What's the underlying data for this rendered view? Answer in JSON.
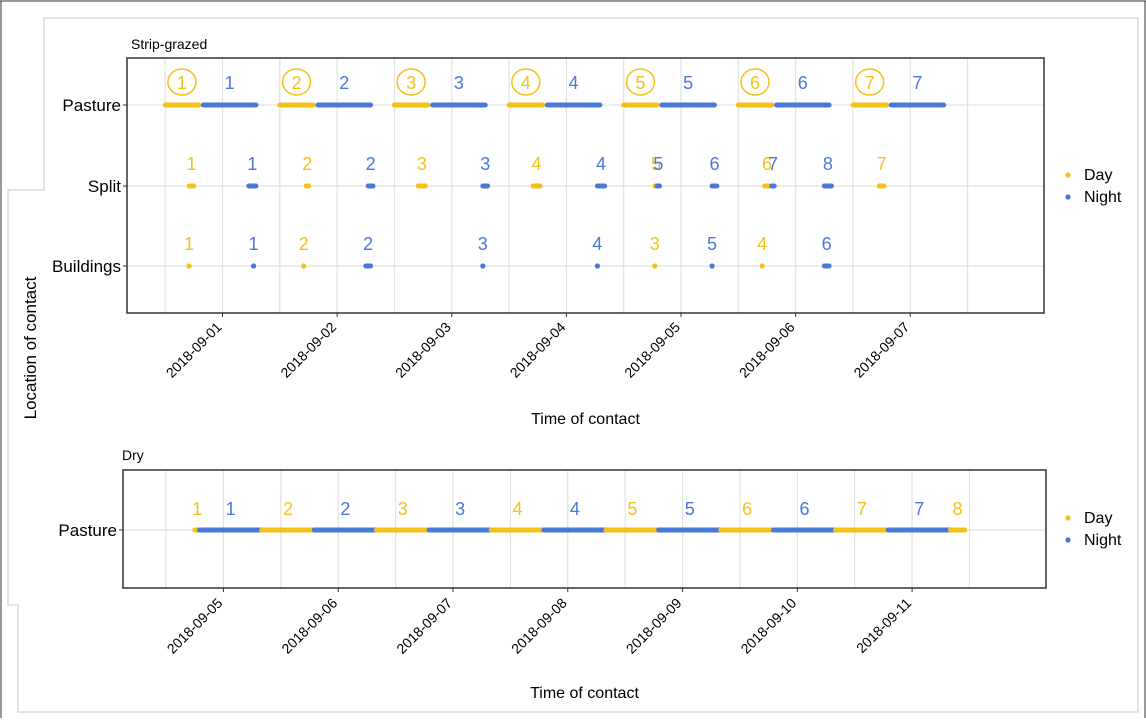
{
  "y_axis_label": "Location of contact",
  "colors": {
    "day": "#F5C116",
    "night": "#4A78D8",
    "panel_border": "#333333",
    "grid": "#E2E2E2"
  },
  "chart_data": [
    {
      "type": "scatter",
      "title": "Strip-grazed",
      "xlabel": "Time of contact",
      "ylabel": "Location of contact",
      "x_ticks": [
        "2018-09-01",
        "2018-09-02",
        "2018-09-03",
        "2018-09-04",
        "2018-09-05",
        "2018-09-06",
        "2018-09-07"
      ],
      "xlim": [
        "2018-08-31 04:00",
        "2018-09-08 04:00"
      ],
      "categories": [
        "Pasture",
        "Split",
        "Buildings"
      ],
      "legend": {
        "placement": "right",
        "entries": [
          "Day",
          "Night"
        ]
      },
      "grid": true,
      "series": [
        {
          "category": "Pasture",
          "segments": [
            {
              "type": "Day",
              "start": "2018-08-31 12:00",
              "end": "2018-08-31 19:00",
              "label": "1",
              "circled": true
            },
            {
              "type": "Night",
              "start": "2018-08-31 20:00",
              "end": "2018-09-01 07:00",
              "label": "1",
              "circled": false
            },
            {
              "type": "Day",
              "start": "2018-09-01 12:00",
              "end": "2018-09-01 19:00",
              "label": "2",
              "circled": true
            },
            {
              "type": "Night",
              "start": "2018-09-01 20:00",
              "end": "2018-09-02 07:00",
              "label": "2",
              "circled": false
            },
            {
              "type": "Day",
              "start": "2018-09-02 12:00",
              "end": "2018-09-02 19:00",
              "label": "3",
              "circled": true
            },
            {
              "type": "Night",
              "start": "2018-09-02 20:00",
              "end": "2018-09-03 07:00",
              "label": "3",
              "circled": false
            },
            {
              "type": "Day",
              "start": "2018-09-03 12:00",
              "end": "2018-09-03 19:00",
              "label": "4",
              "circled": true
            },
            {
              "type": "Night",
              "start": "2018-09-03 20:00",
              "end": "2018-09-04 07:00",
              "label": "4",
              "circled": false
            },
            {
              "type": "Day",
              "start": "2018-09-04 12:00",
              "end": "2018-09-04 19:00",
              "label": "5",
              "circled": true
            },
            {
              "type": "Night",
              "start": "2018-09-04 20:00",
              "end": "2018-09-05 07:00",
              "label": "5",
              "circled": false
            },
            {
              "type": "Day",
              "start": "2018-09-05 12:00",
              "end": "2018-09-05 19:00",
              "label": "6",
              "circled": true
            },
            {
              "type": "Night",
              "start": "2018-09-05 20:00",
              "end": "2018-09-06 07:00",
              "label": "6",
              "circled": false
            },
            {
              "type": "Day",
              "start": "2018-09-06 12:00",
              "end": "2018-09-06 19:00",
              "label": "7",
              "circled": true
            },
            {
              "type": "Night",
              "start": "2018-09-06 20:00",
              "end": "2018-09-07 07:00",
              "label": "7",
              "circled": false
            }
          ]
        },
        {
          "category": "Split",
          "segments": [
            {
              "type": "Day",
              "start": "2018-08-31 17:00",
              "end": "2018-08-31 18:00",
              "label": "1"
            },
            {
              "type": "Night",
              "start": "2018-09-01 05:30",
              "end": "2018-09-01 07:00",
              "label": "1"
            },
            {
              "type": "Day",
              "start": "2018-09-01 17:30",
              "end": "2018-09-01 18:00",
              "label": "2"
            },
            {
              "type": "Night",
              "start": "2018-09-02 06:30",
              "end": "2018-09-02 07:30",
              "label": "2"
            },
            {
              "type": "Day",
              "start": "2018-09-02 17:00",
              "end": "2018-09-02 18:30",
              "label": "3"
            },
            {
              "type": "Night",
              "start": "2018-09-03 06:30",
              "end": "2018-09-03 07:30",
              "label": "3"
            },
            {
              "type": "Day",
              "start": "2018-09-03 17:00",
              "end": "2018-09-03 18:30",
              "label": "4"
            },
            {
              "type": "Night",
              "start": "2018-09-04 06:30",
              "end": "2018-09-04 08:00",
              "label": "4"
            },
            {
              "type": "Day",
              "start": "2018-09-04 18:30",
              "end": "2018-09-04 19:00",
              "label": "5"
            },
            {
              "type": "Night",
              "start": "2018-09-04 19:00",
              "end": "2018-09-04 19:30",
              "label": "5"
            },
            {
              "type": "Night",
              "start": "2018-09-05 06:30",
              "end": "2018-09-05 07:30",
              "label": "6"
            },
            {
              "type": "Day",
              "start": "2018-09-05 17:30",
              "end": "2018-09-05 18:30",
              "label": "6"
            },
            {
              "type": "Night",
              "start": "2018-09-05 19:00",
              "end": "2018-09-05 19:30",
              "label": "7"
            },
            {
              "type": "Night",
              "start": "2018-09-06 06:00",
              "end": "2018-09-06 07:30",
              "label": "8"
            },
            {
              "type": "Day",
              "start": "2018-09-06 17:30",
              "end": "2018-09-06 18:30",
              "label": "7"
            }
          ]
        },
        {
          "category": "Buildings",
          "segments": [
            {
              "type": "Day",
              "start": "2018-08-31 17:00",
              "end": "2018-08-31 17:00",
              "label": "1"
            },
            {
              "type": "Night",
              "start": "2018-09-01 06:30",
              "end": "2018-09-01 06:30",
              "label": "1"
            },
            {
              "type": "Day",
              "start": "2018-09-01 17:00",
              "end": "2018-09-01 17:00",
              "label": "2"
            },
            {
              "type": "Night",
              "start": "2018-09-02 06:00",
              "end": "2018-09-02 07:00",
              "label": "2"
            },
            {
              "type": "Night",
              "start": "2018-09-03 06:30",
              "end": "2018-09-03 06:30",
              "label": "3"
            },
            {
              "type": "Night",
              "start": "2018-09-04 06:30",
              "end": "2018-09-04 06:30",
              "label": "4"
            },
            {
              "type": "Day",
              "start": "2018-09-04 18:30",
              "end": "2018-09-04 18:30",
              "label": "3"
            },
            {
              "type": "Night",
              "start": "2018-09-05 06:30",
              "end": "2018-09-05 06:30",
              "label": "5"
            },
            {
              "type": "Day",
              "start": "2018-09-05 17:00",
              "end": "2018-09-05 17:00",
              "label": "4"
            },
            {
              "type": "Night",
              "start": "2018-09-06 06:00",
              "end": "2018-09-06 07:00",
              "label": "6"
            }
          ]
        }
      ]
    },
    {
      "type": "scatter",
      "title": "Dry",
      "xlabel": "Time of contact",
      "ylabel": "Location of contact",
      "x_ticks": [
        "2018-09-05",
        "2018-09-06",
        "2018-09-07",
        "2018-09-08",
        "2018-09-09",
        "2018-09-10",
        "2018-09-11"
      ],
      "xlim": [
        "2018-09-04 03:00",
        "2018-09-12 04:00"
      ],
      "categories": [
        "Pasture"
      ],
      "legend": {
        "placement": "right",
        "entries": [
          "Day",
          "Night"
        ]
      },
      "grid": true,
      "series": [
        {
          "category": "Pasture",
          "segments": [
            {
              "type": "Day",
              "start": "2018-09-04 18:00",
              "end": "2018-09-04 19:00",
              "label": "1"
            },
            {
              "type": "Night",
              "start": "2018-09-04 19:00",
              "end": "2018-09-05 08:00",
              "label": "1"
            },
            {
              "type": "Day",
              "start": "2018-09-05 08:00",
              "end": "2018-09-05 19:00",
              "label": "2"
            },
            {
              "type": "Night",
              "start": "2018-09-05 19:00",
              "end": "2018-09-06 08:00",
              "label": "2"
            },
            {
              "type": "Day",
              "start": "2018-09-06 08:00",
              "end": "2018-09-06 19:00",
              "label": "3"
            },
            {
              "type": "Night",
              "start": "2018-09-06 19:00",
              "end": "2018-09-07 08:00",
              "label": "3"
            },
            {
              "type": "Day",
              "start": "2018-09-07 08:00",
              "end": "2018-09-07 19:00",
              "label": "4"
            },
            {
              "type": "Night",
              "start": "2018-09-07 19:00",
              "end": "2018-09-08 08:00",
              "label": "4"
            },
            {
              "type": "Day",
              "start": "2018-09-08 08:00",
              "end": "2018-09-08 19:00",
              "label": "5"
            },
            {
              "type": "Night",
              "start": "2018-09-08 19:00",
              "end": "2018-09-09 08:00",
              "label": "5"
            },
            {
              "type": "Day",
              "start": "2018-09-09 08:00",
              "end": "2018-09-09 19:00",
              "label": "6"
            },
            {
              "type": "Night",
              "start": "2018-09-09 19:00",
              "end": "2018-09-10 08:00",
              "label": "6"
            },
            {
              "type": "Day",
              "start": "2018-09-10 08:00",
              "end": "2018-09-10 19:00",
              "label": "7"
            },
            {
              "type": "Night",
              "start": "2018-09-10 19:00",
              "end": "2018-09-11 08:00",
              "label": "7"
            },
            {
              "type": "Day",
              "start": "2018-09-11 08:00",
              "end": "2018-09-11 11:00",
              "label": "8"
            }
          ]
        }
      ]
    }
  ]
}
